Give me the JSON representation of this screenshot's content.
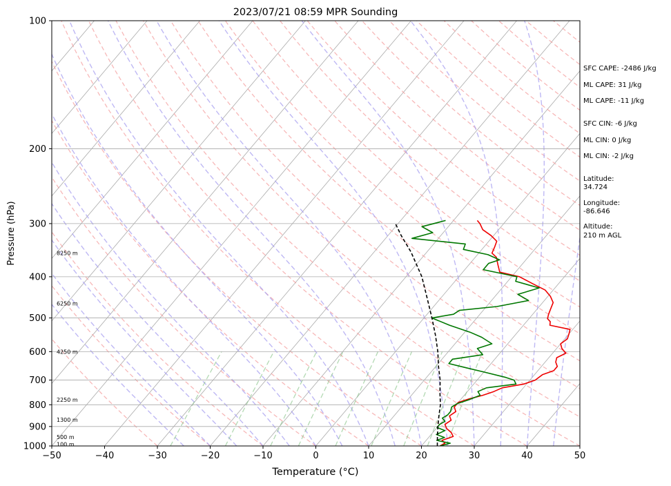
{
  "chart_data": {
    "type": "line",
    "title": "2023/07/21 08:59 MPR Sounding",
    "xlabel": "Temperature (°C)",
    "ylabel": "Pressure (hPa)",
    "xlim": [
      -50,
      50
    ],
    "ylim": [
      1000,
      100
    ],
    "y_scale": "log",
    "grid": true,
    "x_ticks": [
      "−50",
      "−40",
      "−30",
      "−20",
      "−10",
      "0",
      "10",
      "20",
      "30",
      "40",
      "50"
    ],
    "y_ticks": [
      {
        "p": 100,
        "label": "100"
      },
      {
        "p": 200,
        "label": "200"
      },
      {
        "p": 300,
        "label": "300"
      },
      {
        "p": 400,
        "label": "400"
      },
      {
        "p": 500,
        "label": "500"
      },
      {
        "p": 600,
        "label": "600"
      },
      {
        "p": 700,
        "label": "700"
      },
      {
        "p": 800,
        "label": "800"
      },
      {
        "p": 900,
        "label": "900"
      },
      {
        "p": 1000,
        "label": "1000"
      }
    ],
    "height_labels": [
      {
        "p": 352,
        "label": "8250 m"
      },
      {
        "p": 462,
        "label": "6250 m"
      },
      {
        "p": 600,
        "label": "4250 m"
      },
      {
        "p": 779,
        "label": "2250 m"
      },
      {
        "p": 868,
        "label": "1300 m"
      },
      {
        "p": 953,
        "label": "500 m"
      },
      {
        "p": 990,
        "label": "100 m"
      }
    ],
    "series": [
      {
        "color": "#ee0000",
        "points": [
          [
            1000,
            23.5
          ],
          [
            985,
            24
          ],
          [
            970,
            23
          ],
          [
            950,
            24.5
          ],
          [
            930,
            23.5
          ],
          [
            910,
            22
          ],
          [
            890,
            21
          ],
          [
            870,
            21.5
          ],
          [
            850,
            20.5
          ],
          [
            830,
            21
          ],
          [
            810,
            20
          ],
          [
            790,
            20
          ],
          [
            775,
            21.5
          ],
          [
            760,
            23.5
          ],
          [
            745,
            25
          ],
          [
            730,
            26
          ],
          [
            715,
            29.5
          ],
          [
            700,
            31
          ],
          [
            680,
            31.5
          ],
          [
            665,
            33
          ],
          [
            650,
            33
          ],
          [
            635,
            32
          ],
          [
            620,
            31.5
          ],
          [
            605,
            32.5
          ],
          [
            590,
            31
          ],
          [
            575,
            30
          ],
          [
            560,
            30.5
          ],
          [
            545,
            30
          ],
          [
            532,
            29.5
          ],
          [
            520,
            25
          ],
          [
            510,
            24.5
          ],
          [
            502,
            23.5
          ],
          [
            490,
            23
          ],
          [
            475,
            22.5
          ],
          [
            460,
            22
          ],
          [
            445,
            20.5
          ],
          [
            430,
            18.5
          ],
          [
            415,
            15
          ],
          [
            400,
            11.5
          ],
          [
            390,
            7
          ],
          [
            375,
            5.5
          ],
          [
            360,
            4
          ],
          [
            352,
            2.5
          ],
          [
            340,
            2
          ],
          [
            330,
            1.5
          ],
          [
            320,
            -0.5
          ],
          [
            310,
            -3
          ],
          [
            300,
            -4.5
          ],
          [
            295,
            -5.5
          ]
        ]
      },
      {
        "color": "#007700",
        "points": [
          [
            1000,
            23.5
          ],
          [
            985,
            25
          ],
          [
            970,
            22
          ],
          [
            955,
            23
          ],
          [
            940,
            21
          ],
          [
            920,
            22
          ],
          [
            905,
            20
          ],
          [
            890,
            20
          ],
          [
            875,
            20.5
          ],
          [
            860,
            19.5
          ],
          [
            845,
            20
          ],
          [
            830,
            20
          ],
          [
            810,
            19.5
          ],
          [
            795,
            20
          ],
          [
            780,
            21.5
          ],
          [
            760,
            23
          ],
          [
            745,
            22
          ],
          [
            730,
            23
          ],
          [
            715,
            28
          ],
          [
            700,
            27
          ],
          [
            690,
            25
          ],
          [
            670,
            20
          ],
          [
            655,
            16
          ],
          [
            640,
            12
          ],
          [
            625,
            12
          ],
          [
            610,
            17
          ],
          [
            590,
            15
          ],
          [
            575,
            17
          ],
          [
            555,
            14
          ],
          [
            540,
            11
          ],
          [
            520,
            6
          ],
          [
            500,
            1.5
          ],
          [
            490,
            5
          ],
          [
            480,
            5.5
          ],
          [
            470,
            12
          ],
          [
            455,
            17
          ],
          [
            440,
            14
          ],
          [
            425,
            17
          ],
          [
            410,
            11.5
          ],
          [
            400,
            11
          ],
          [
            385,
            3.5
          ],
          [
            372,
            3.5
          ],
          [
            365,
            5
          ],
          [
            355,
            2
          ],
          [
            345,
            -3.5
          ],
          [
            335,
            -4
          ],
          [
            325,
            -15
          ],
          [
            315,
            -12
          ],
          [
            305,
            -15
          ],
          [
            295,
            -11.5
          ]
        ]
      },
      {
        "color": "#000000",
        "dashed": true,
        "points": [
          [
            1000,
            23
          ],
          [
            950,
            21.5
          ],
          [
            900,
            20
          ],
          [
            850,
            18.5
          ],
          [
            800,
            17
          ],
          [
            750,
            15
          ],
          [
            700,
            13
          ],
          [
            650,
            10.5
          ],
          [
            600,
            8
          ],
          [
            550,
            5
          ],
          [
            500,
            1.5
          ],
          [
            450,
            -2.5
          ],
          [
            400,
            -7
          ],
          [
            350,
            -13
          ],
          [
            320,
            -17.5
          ],
          [
            300,
            -20.5
          ]
        ]
      }
    ],
    "annotations": [
      {
        "text": "SFC CAPE: -2486 J/kg"
      },
      {
        "text": "ML CAPE: 31 J/kg"
      },
      {
        "text": "ML CAPE: -11 J/kg"
      },
      {
        "text": "SFC CIN: -6 J/kg"
      },
      {
        "text": "ML CIN: 0 J/kg"
      },
      {
        "text": "ML CIN: -2 J/kg"
      },
      {
        "text": "Latitude:"
      },
      {
        "text": "34.724"
      },
      {
        "text": "Longitude:"
      },
      {
        "text": "-86.646"
      },
      {
        "text": "Altitude:"
      },
      {
        "text": "210 m AGL"
      }
    ]
  }
}
